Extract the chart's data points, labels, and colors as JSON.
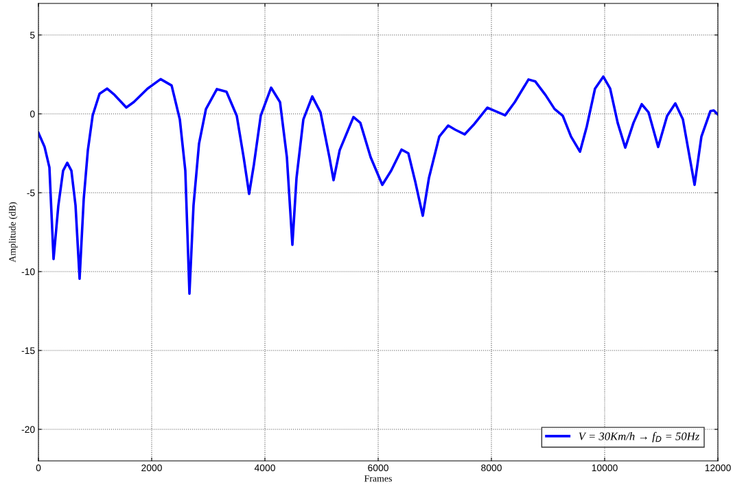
{
  "chart_data": {
    "type": "line",
    "xlabel": "Frames",
    "ylabel": "Amplitude (dB)",
    "xlim": [
      0,
      12000
    ],
    "ylim": [
      -22,
      7
    ],
    "xticks": [
      0,
      2000,
      4000,
      6000,
      8000,
      10000,
      12000
    ],
    "yticks": [
      -20,
      -15,
      -10,
      -5,
      0,
      5
    ],
    "grid": true,
    "legend": "bottom right",
    "line_style": "solid",
    "marker": "none",
    "x": [
      0,
      109,
      194,
      267,
      352,
      436,
      509,
      582,
      655,
      727,
      800,
      873,
      958,
      1079,
      1212,
      1345,
      1552,
      1685,
      1927,
      2158,
      2352,
      2497,
      2594,
      2667,
      2739,
      2836,
      2958,
      3152,
      3321,
      3503,
      3624,
      3721,
      3806,
      3927,
      4109,
      4267,
      4388,
      4485,
      4558,
      4679,
      4836,
      4982,
      5139,
      5212,
      5321,
      5564,
      5685,
      5867,
      6073,
      6230,
      6412,
      6533,
      6655,
      6788,
      6897,
      7079,
      7236,
      7358,
      7527,
      7685,
      7927,
      8073,
      8242,
      8412,
      8655,
      8776,
      8958,
      9115,
      9261,
      9406,
      9564,
      9685,
      9830,
      9976,
      10097,
      10230,
      10364,
      10509,
      10655,
      10776,
      10945,
      11103,
      11248,
      11382,
      11588,
      11709,
      11867,
      11927,
      12000
    ],
    "series": [
      {
        "name": "V = 30Km/h → f$_{D}$ = 50Hz",
        "color": "#0000ff",
        "values": [
          -1.2,
          -2.1,
          -3.4,
          -9.2,
          -5.8,
          -3.6,
          -3.1,
          -3.6,
          -5.8,
          -10.45,
          -5.4,
          -2.3,
          -0.1,
          1.27,
          1.6,
          1.2,
          0.4,
          0.75,
          1.6,
          2.2,
          1.8,
          -0.35,
          -3.6,
          -11.4,
          -5.8,
          -1.9,
          0.3,
          1.57,
          1.4,
          -0.13,
          -2.75,
          -5.07,
          -3.2,
          -0.1,
          1.66,
          0.74,
          -2.75,
          -8.3,
          -4.06,
          -0.35,
          1.1,
          0.09,
          -2.75,
          -4.2,
          -2.3,
          -0.2,
          -0.57,
          -2.75,
          -4.5,
          -3.6,
          -2.27,
          -2.5,
          -4.3,
          -6.46,
          -4.06,
          -1.44,
          -0.74,
          -1.0,
          -1.3,
          -0.7,
          0.39,
          0.17,
          -0.09,
          0.74,
          2.18,
          2.05,
          1.18,
          0.31,
          -0.13,
          -1.44,
          -2.4,
          -0.79,
          1.6,
          2.36,
          1.6,
          -0.57,
          -2.14,
          -0.57,
          0.61,
          0.09,
          -2.1,
          -0.13,
          0.66,
          -0.35,
          -4.5,
          -1.44,
          0.17,
          0.22,
          -0.04
        ]
      }
    ]
  }
}
